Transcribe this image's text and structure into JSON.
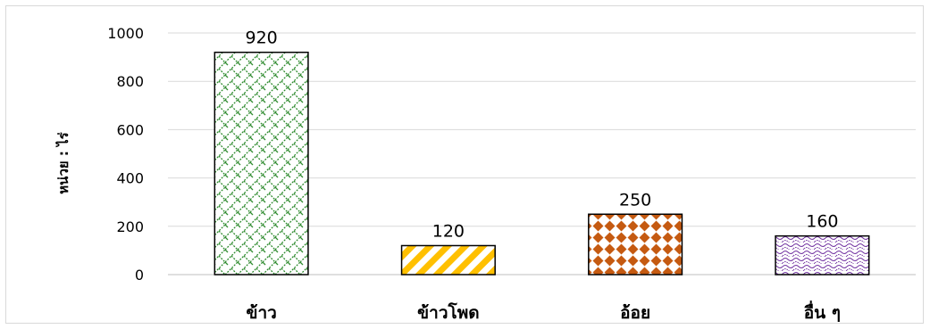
{
  "chart_data": {
    "type": "bar",
    "categories": [
      "ข้าว",
      "ข้าวโพด",
      "อ้อย",
      "อื่น ๆ"
    ],
    "values": [
      920,
      120,
      250,
      160
    ],
    "data_labels": [
      "920",
      "120",
      "250",
      "160"
    ],
    "ylabel": "หน่วย : ไร่",
    "xlabel": "",
    "ylim": [
      0,
      1000
    ],
    "yticks": [
      0,
      200,
      400,
      600,
      800,
      1000
    ],
    "grid": true,
    "legend": "none",
    "bar_fills": [
      {
        "pattern": "diagonal-brick",
        "color": "#2e8b2e",
        "background": "#ffffff"
      },
      {
        "pattern": "wide-upward-diagonal",
        "color": "#ffc000",
        "background": "#ffffff"
      },
      {
        "pattern": "diamond-grid",
        "color": "#c55a11",
        "background": "#ffffff"
      },
      {
        "pattern": "wave",
        "color": "#7030a0",
        "background": "#ffffff"
      }
    ],
    "colors": {
      "gridline": "#d9d9d9",
      "bar_border": "#000000",
      "axis": "#bfbfbf"
    }
  }
}
